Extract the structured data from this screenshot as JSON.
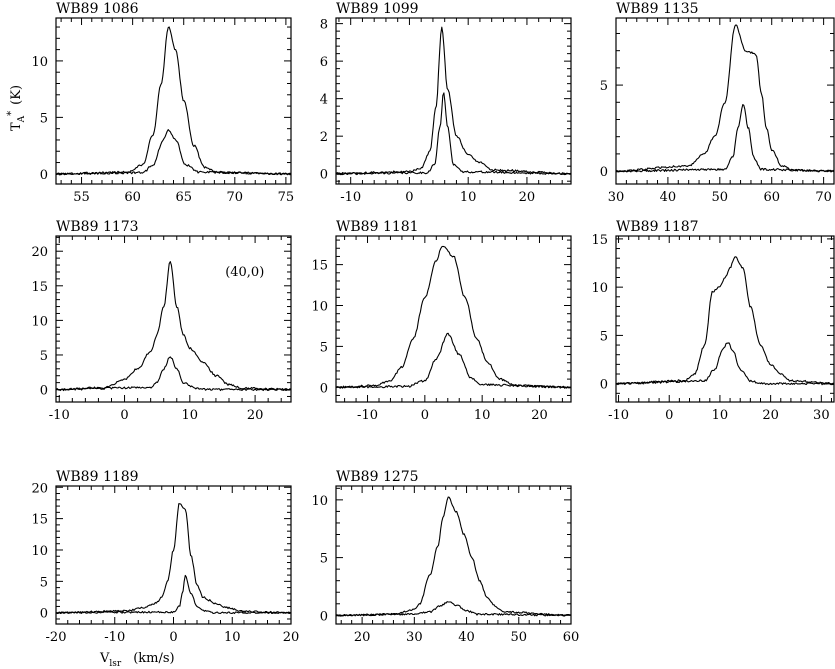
{
  "chart_data": [
    {
      "type": "line",
      "title": "WB89 1086",
      "xlim": [
        52.5,
        75.5
      ],
      "ylim": [
        -0.9,
        13.8
      ],
      "xticks": [
        55,
        60,
        65,
        70,
        75
      ],
      "yticks": [
        0,
        5,
        10
      ],
      "series": [
        {
          "points": [
            [
              52.5,
              0
            ],
            [
              59.5,
              0.15
            ],
            [
              61,
              0.8
            ],
            [
              62,
              3.5
            ],
            [
              62.8,
              8
            ],
            [
              63.5,
              13
            ],
            [
              64.2,
              11
            ],
            [
              65,
              6.5
            ],
            [
              66,
              2.5
            ],
            [
              67,
              0.6
            ],
            [
              68.5,
              0.1
            ],
            [
              75.5,
              0
            ]
          ]
        },
        {
          "points": [
            [
              52.5,
              0
            ],
            [
              61,
              0.1
            ],
            [
              62,
              0.8
            ],
            [
              63,
              3
            ],
            [
              63.5,
              3.9
            ],
            [
              64.2,
              3
            ],
            [
              65.2,
              0.8
            ],
            [
              66.5,
              0.15
            ],
            [
              75.5,
              0
            ]
          ]
        }
      ]
    },
    {
      "type": "line",
      "title": "WB89 1099",
      "xlim": [
        -12.5,
        27.5
      ],
      "ylim": [
        -0.55,
        8.3
      ],
      "xticks": [
        -10,
        0,
        10,
        20
      ],
      "yticks": [
        0,
        2,
        4,
        6,
        8
      ],
      "series": [
        {
          "points": [
            [
              -12.5,
              0
            ],
            [
              0,
              0.1
            ],
            [
              2,
              0.3
            ],
            [
              3.5,
              1.2
            ],
            [
              4.5,
              3.5
            ],
            [
              5.5,
              7.8
            ],
            [
              6.5,
              4.5
            ],
            [
              8,
              2
            ],
            [
              10,
              1
            ],
            [
              12,
              0.6
            ],
            [
              14,
              0.2
            ],
            [
              27.5,
              0
            ]
          ]
        },
        {
          "points": [
            [
              -12.5,
              0
            ],
            [
              3,
              0.05
            ],
            [
              4.3,
              0.5
            ],
            [
              5.2,
              2.5
            ],
            [
              5.8,
              4.3
            ],
            [
              6.5,
              2.5
            ],
            [
              7.5,
              0.5
            ],
            [
              9,
              0.1
            ],
            [
              27.5,
              0
            ]
          ]
        }
      ]
    },
    {
      "type": "line",
      "title": "WB89 1135",
      "xlim": [
        30,
        72
      ],
      "ylim": [
        -0.75,
        8.9
      ],
      "xticks": [
        30,
        40,
        50,
        60,
        70
      ],
      "yticks": [
        0,
        5
      ],
      "series": [
        {
          "points": [
            [
              30,
              0
            ],
            [
              44,
              0.3
            ],
            [
              47,
              1
            ],
            [
              49,
              2
            ],
            [
              51,
              4
            ],
            [
              53,
              8.5
            ],
            [
              55,
              7
            ],
            [
              57,
              6.8
            ],
            [
              58,
              4.5
            ],
            [
              59,
              2.5
            ],
            [
              60,
              1.2
            ],
            [
              62,
              0.3
            ],
            [
              64,
              0.05
            ],
            [
              72,
              0
            ]
          ]
        },
        {
          "points": [
            [
              30,
              0
            ],
            [
              51,
              0.1
            ],
            [
              52.5,
              0.8
            ],
            [
              53.5,
              2.5
            ],
            [
              54.5,
              3.9
            ],
            [
              55.5,
              2.5
            ],
            [
              56.5,
              0.8
            ],
            [
              58,
              0.1
            ],
            [
              72,
              0
            ]
          ]
        }
      ]
    },
    {
      "type": "line",
      "title": "WB89 1173",
      "annotation": "(40,0)",
      "xlim": [
        -10.5,
        25.5
      ],
      "ylim": [
        -1.8,
        22.2
      ],
      "xticks": [
        -10,
        0,
        10,
        20
      ],
      "yticks": [
        0,
        5,
        10,
        15,
        20
      ],
      "series": [
        {
          "points": [
            [
              -10.5,
              0
            ],
            [
              -3,
              0.3
            ],
            [
              0,
              1.5
            ],
            [
              2,
              3
            ],
            [
              4,
              5.5
            ],
            [
              5,
              8
            ],
            [
              6,
              12
            ],
            [
              7,
              18.5
            ],
            [
              8,
              12
            ],
            [
              9,
              8
            ],
            [
              10,
              6
            ],
            [
              12,
              4
            ],
            [
              14,
              2
            ],
            [
              16,
              0.7
            ],
            [
              18,
              0.2
            ],
            [
              25.5,
              0
            ]
          ]
        },
        {
          "points": [
            [
              -10.5,
              0
            ],
            [
              4,
              0.3
            ],
            [
              5,
              1
            ],
            [
              6,
              3
            ],
            [
              7,
              4.8
            ],
            [
              8,
              3
            ],
            [
              9,
              1
            ],
            [
              11,
              0.2
            ],
            [
              13,
              0
            ],
            [
              25.5,
              0
            ]
          ]
        }
      ]
    },
    {
      "type": "line",
      "title": "WB89 1181",
      "xlim": [
        -15.5,
        25.5
      ],
      "ylim": [
        -1.8,
        18.5
      ],
      "xticks": [
        -10,
        0,
        10,
        20
      ],
      "yticks": [
        0,
        5,
        10,
        15
      ],
      "series": [
        {
          "points": [
            [
              -15.5,
              0
            ],
            [
              -9,
              0.2
            ],
            [
              -6,
              0.8
            ],
            [
              -4,
              2.5
            ],
            [
              -2,
              6
            ],
            [
              0,
              11
            ],
            [
              2,
              15.5
            ],
            [
              3,
              17.3
            ],
            [
              5,
              16
            ],
            [
              7,
              11
            ],
            [
              9,
              6
            ],
            [
              11,
              3
            ],
            [
              13,
              1
            ],
            [
              16,
              0.2
            ],
            [
              25.5,
              0
            ]
          ]
        },
        {
          "points": [
            [
              -15.5,
              0
            ],
            [
              -3,
              0.1
            ],
            [
              0,
              0.8
            ],
            [
              2,
              3.5
            ],
            [
              4,
              6.5
            ],
            [
              6,
              4
            ],
            [
              8,
              1.2
            ],
            [
              10,
              0.3
            ],
            [
              25.5,
              0
            ]
          ]
        }
      ]
    },
    {
      "type": "line",
      "title": "WB89 1187",
      "xlim": [
        -10.5,
        32.5
      ],
      "ylim": [
        -1.9,
        15.3
      ],
      "xticks": [
        -10,
        0,
        10,
        20,
        30
      ],
      "yticks": [
        0,
        5,
        10,
        15
      ],
      "series": [
        {
          "points": [
            [
              -10.5,
              0
            ],
            [
              3,
              0.3
            ],
            [
              5,
              1
            ],
            [
              7,
              4
            ],
            [
              8.5,
              9.5
            ],
            [
              10,
              10
            ],
            [
              11,
              11
            ],
            [
              12,
              12
            ],
            [
              13,
              13.2
            ],
            [
              14.5,
              12
            ],
            [
              16,
              8
            ],
            [
              18,
              4
            ],
            [
              20,
              2
            ],
            [
              22,
              1
            ],
            [
              24,
              0.3
            ],
            [
              32.5,
              0
            ]
          ]
        },
        {
          "points": [
            [
              -10.5,
              0
            ],
            [
              7,
              0.3
            ],
            [
              9,
              1.5
            ],
            [
              10.5,
              3.5
            ],
            [
              11.5,
              4.3
            ],
            [
              12.5,
              3.5
            ],
            [
              14,
              1.5
            ],
            [
              16,
              0.3
            ],
            [
              18,
              0
            ],
            [
              32.5,
              0
            ]
          ]
        }
      ]
    },
    {
      "type": "line",
      "title": "WB89 1189",
      "xlim": [
        -20,
        20
      ],
      "ylim": [
        -1.8,
        20.2
      ],
      "xticks": [
        -20,
        -10,
        0,
        10,
        20
      ],
      "yticks": [
        0,
        5,
        10,
        15,
        20
      ],
      "series": [
        {
          "points": [
            [
              -20,
              0
            ],
            [
              -8,
              0.3
            ],
            [
              -5,
              0.8
            ],
            [
              -3,
              1.5
            ],
            [
              -2,
              2.5
            ],
            [
              -1,
              5
            ],
            [
              0,
              10
            ],
            [
              1,
              17.5
            ],
            [
              2,
              16.5
            ],
            [
              3,
              9
            ],
            [
              4,
              4.5
            ],
            [
              5,
              2.5
            ],
            [
              6,
              2
            ],
            [
              7,
              1.5
            ],
            [
              9,
              0.8
            ],
            [
              12,
              0.2
            ],
            [
              20,
              0
            ]
          ]
        },
        {
          "points": [
            [
              -20,
              0
            ],
            [
              0,
              0.1
            ],
            [
              1,
              1
            ],
            [
              1.5,
              3
            ],
            [
              2,
              6
            ],
            [
              3,
              3
            ],
            [
              4,
              1
            ],
            [
              5,
              0.3
            ],
            [
              7,
              0
            ],
            [
              20,
              0
            ]
          ]
        }
      ]
    },
    {
      "type": "line",
      "title": "WB89 1275",
      "xlim": [
        15,
        60
      ],
      "ylim": [
        -0.75,
        11.2
      ],
      "xticks": [
        20,
        30,
        40,
        50,
        60
      ],
      "yticks": [
        0,
        5,
        10
      ],
      "series": [
        {
          "points": [
            [
              15,
              0
            ],
            [
              26,
              0.1
            ],
            [
              30,
              0.5
            ],
            [
              31,
              1
            ],
            [
              33,
              3.5
            ],
            [
              34.5,
              6
            ],
            [
              35.5,
              8.5
            ],
            [
              36.5,
              10.2
            ],
            [
              38,
              9
            ],
            [
              39.5,
              7
            ],
            [
              41,
              5
            ],
            [
              42.5,
              3
            ],
            [
              44,
              1.5
            ],
            [
              45.5,
              0.8
            ],
            [
              47,
              0.3
            ],
            [
              60,
              0
            ]
          ]
        },
        {
          "points": [
            [
              15,
              0
            ],
            [
              30,
              0.1
            ],
            [
              33,
              0.3
            ],
            [
              35,
              0.8
            ],
            [
              36.5,
              1.2
            ],
            [
              38,
              0.9
            ],
            [
              40,
              0.4
            ],
            [
              42,
              0.1
            ],
            [
              60,
              0
            ]
          ]
        }
      ]
    }
  ],
  "axes": {
    "ylabel_text": "T",
    "ylabel_sub": "A",
    "ylabel_sup": "*",
    "ylabel_unit": "(K)",
    "xlabel_text": "V",
    "xlabel_sub": "lsr",
    "xlabel_unit": "(km/s)"
  }
}
